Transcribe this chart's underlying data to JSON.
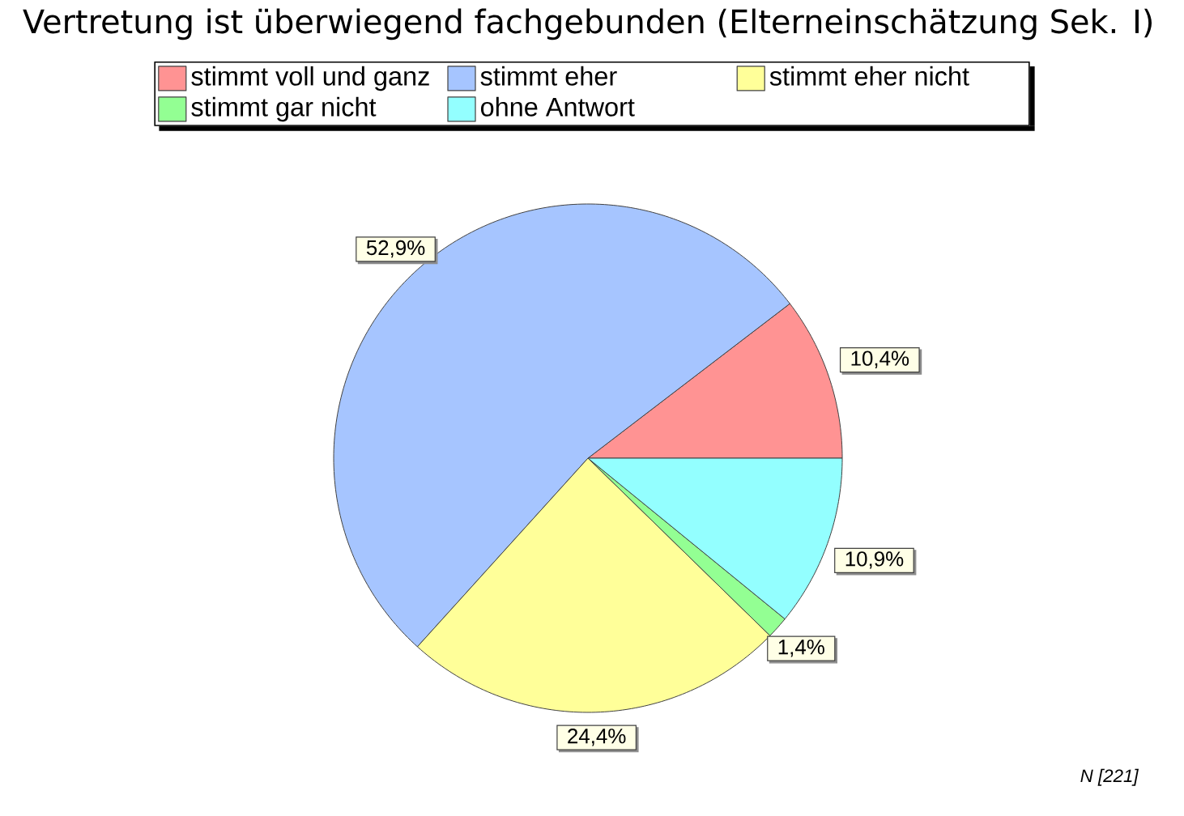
{
  "chart_data": {
    "type": "pie",
    "title": "Vertretung ist überwiegend fachgebunden (Elterneinschätzung Sek. I)",
    "categories": [
      "stimmt voll und ganz",
      "stimmt eher",
      "stimmt eher nicht",
      "stimmt gar nicht",
      "ohne Antwort"
    ],
    "values": [
      10.4,
      52.9,
      24.4,
      1.4,
      10.9
    ],
    "colors": [
      "#ff9393",
      "#a6c5ff",
      "#ffff99",
      "#93ff93",
      "#93ffff"
    ],
    "value_labels": [
      "10,4%",
      "52,9%",
      "24,4%",
      "1,4%",
      "10,9%"
    ],
    "legend": "top",
    "annotations": [
      "N [221]"
    ]
  }
}
